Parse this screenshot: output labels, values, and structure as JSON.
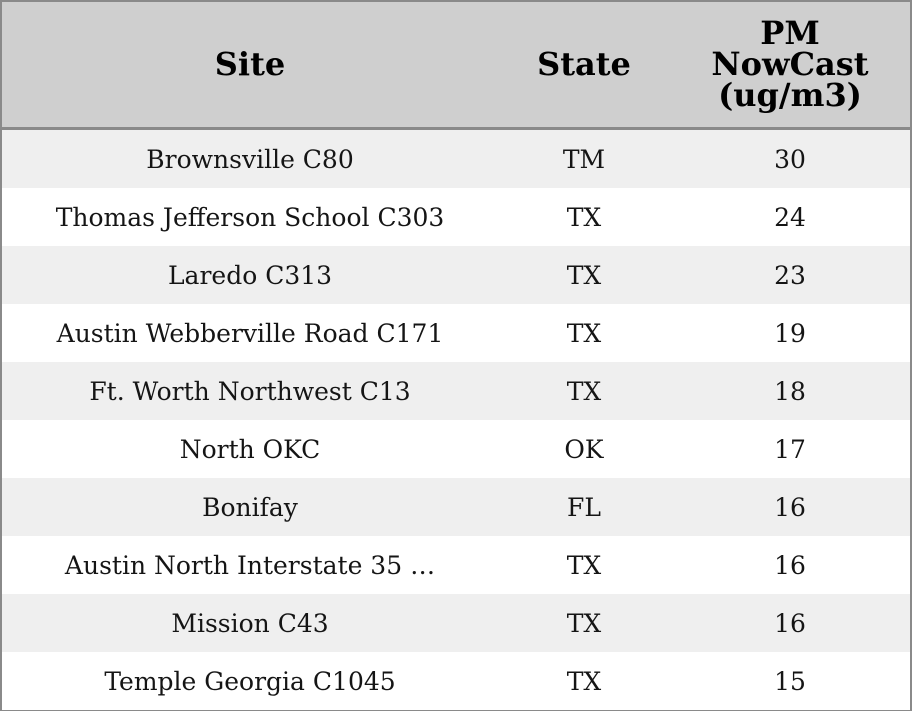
{
  "chart_data": {
    "type": "table",
    "columns": [
      {
        "lines": [
          "Site"
        ]
      },
      {
        "lines": [
          "State"
        ]
      },
      {
        "lines": [
          "PM",
          "NowCast",
          "(ug/m3)"
        ]
      }
    ],
    "rows": [
      {
        "site": "Brownsville C80",
        "state": "TM",
        "pm": "30"
      },
      {
        "site": "Thomas Jefferson School C303",
        "state": "TX",
        "pm": "24"
      },
      {
        "site": "Laredo C313",
        "state": "TX",
        "pm": "23"
      },
      {
        "site": "Austin Webberville Road C171",
        "state": "TX",
        "pm": "19"
      },
      {
        "site": "Ft. Worth Northwest C13",
        "state": "TX",
        "pm": "18"
      },
      {
        "site": "North OKC",
        "state": "OK",
        "pm": "17"
      },
      {
        "site": "Bonifay",
        "state": "FL",
        "pm": "16"
      },
      {
        "site": "Austin North Interstate 35 …",
        "state": "TX",
        "pm": "16"
      },
      {
        "site": "Mission C43",
        "state": "TX",
        "pm": "16"
      },
      {
        "site": "Temple Georgia C1045",
        "state": "TX",
        "pm": "15"
      }
    ],
    "colors": {
      "header_bg": "#cfcfcf",
      "stripe_bg": "#efefef",
      "row_bg": "#ffffff",
      "border": "#8a8a8a"
    }
  }
}
